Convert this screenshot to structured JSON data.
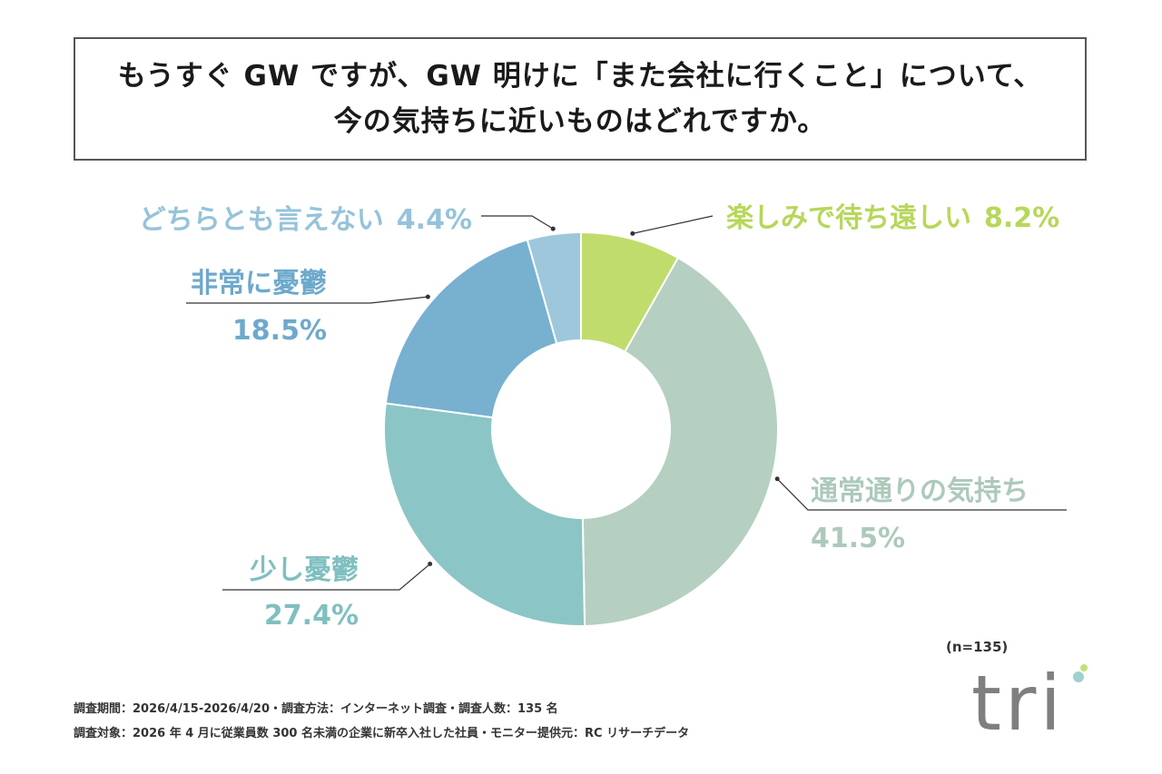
{
  "title": {
    "line1": "もうすぐ GW ですが、GW 明けに「また会社に行くこと」について、",
    "line2": "今の気持ちに近いものはどれですか。"
  },
  "chart_data": {
    "type": "pie",
    "style": "donut",
    "title": "もうすぐ GW ですが、GW 明けに「また会社に行くこと」について、今の気持ちに近いものはどれですか。",
    "slices": [
      {
        "label": "楽しみで待ち遠しい",
        "value": 8.2,
        "display": "8.2%",
        "color": "#bfdc6c"
      },
      {
        "label": "通常通りの気持ち",
        "value": 41.5,
        "display": "41.5%",
        "color": "#b5cfc1"
      },
      {
        "label": "少し憂鬱",
        "value": 27.4,
        "display": "27.4%",
        "color": "#8cc5c6"
      },
      {
        "label": "非常に憂鬱",
        "value": 18.5,
        "display": "18.5%",
        "color": "#78b0d0"
      },
      {
        "label": "どちらとも言えない",
        "value": 4.4,
        "display": "4.4%",
        "color": "#9ec7dc"
      }
    ]
  },
  "n_label": "(n=135)",
  "notes": {
    "line1": "調査期間：2026/4/15-2026/4/20・調査方法：インターネット調査・調査人数：135 名",
    "line2": "調査対象：2026 年 4 月に従業員数 300 名未満の企業に新卒入社した社員・モニター提供元：RC リサーチデータ"
  },
  "logo": {
    "text": "tri"
  }
}
